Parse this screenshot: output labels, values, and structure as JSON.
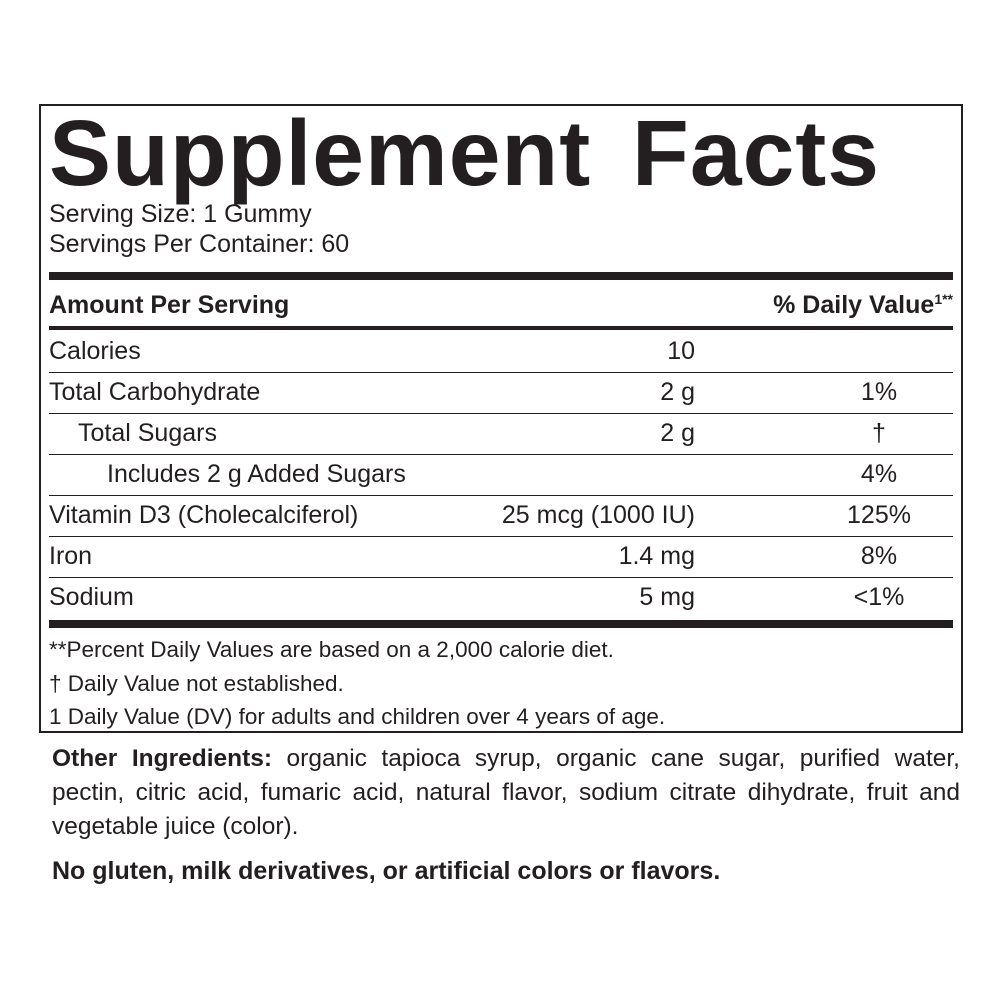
{
  "title": "Supplement Facts",
  "serving_size": "Serving Size: 1 Gummy",
  "servings_per_container": "Servings Per Container: 60",
  "header": {
    "amount": "Amount Per Serving",
    "dv": "% Daily Value",
    "dv_sup": "1**"
  },
  "rows": [
    {
      "name": "Calories",
      "amount": "10",
      "dv": "",
      "indent": 0
    },
    {
      "name": "Total Carbohydrate",
      "amount": "2 g",
      "dv": "1%",
      "indent": 0
    },
    {
      "name": "Total Sugars",
      "amount": "2 g",
      "dv": "†",
      "indent": 1
    },
    {
      "name": "Includes 2 g Added Sugars",
      "amount": "",
      "dv": "4%",
      "indent": 2
    },
    {
      "name": "Vitamin D3 (Cholecalciferol)",
      "amount": "25 mcg (1000 IU)",
      "dv": "125%",
      "indent": 0
    },
    {
      "name": "Iron",
      "amount": "1.4 mg",
      "dv": "8%",
      "indent": 0
    },
    {
      "name": "Sodium",
      "amount": "5 mg",
      "dv": "<1%",
      "indent": 0
    }
  ],
  "footnotes": [
    "**Percent Daily Values are based on a 2,000 calorie diet.",
    "† Daily Value not established.",
    "1 Daily Value (DV) for adults and children over 4 years of age."
  ],
  "other_ingredients": {
    "label": "Other Ingredients:",
    "text": " organic tapioca syrup, organic cane sugar, purified water, pectin, citric acid, fumaric acid, natural flavor, sodium citrate dihydrate, fruit and vegetable juice (color)."
  },
  "free_from": "No gluten, milk derivatives, or artificial colors or flavors."
}
